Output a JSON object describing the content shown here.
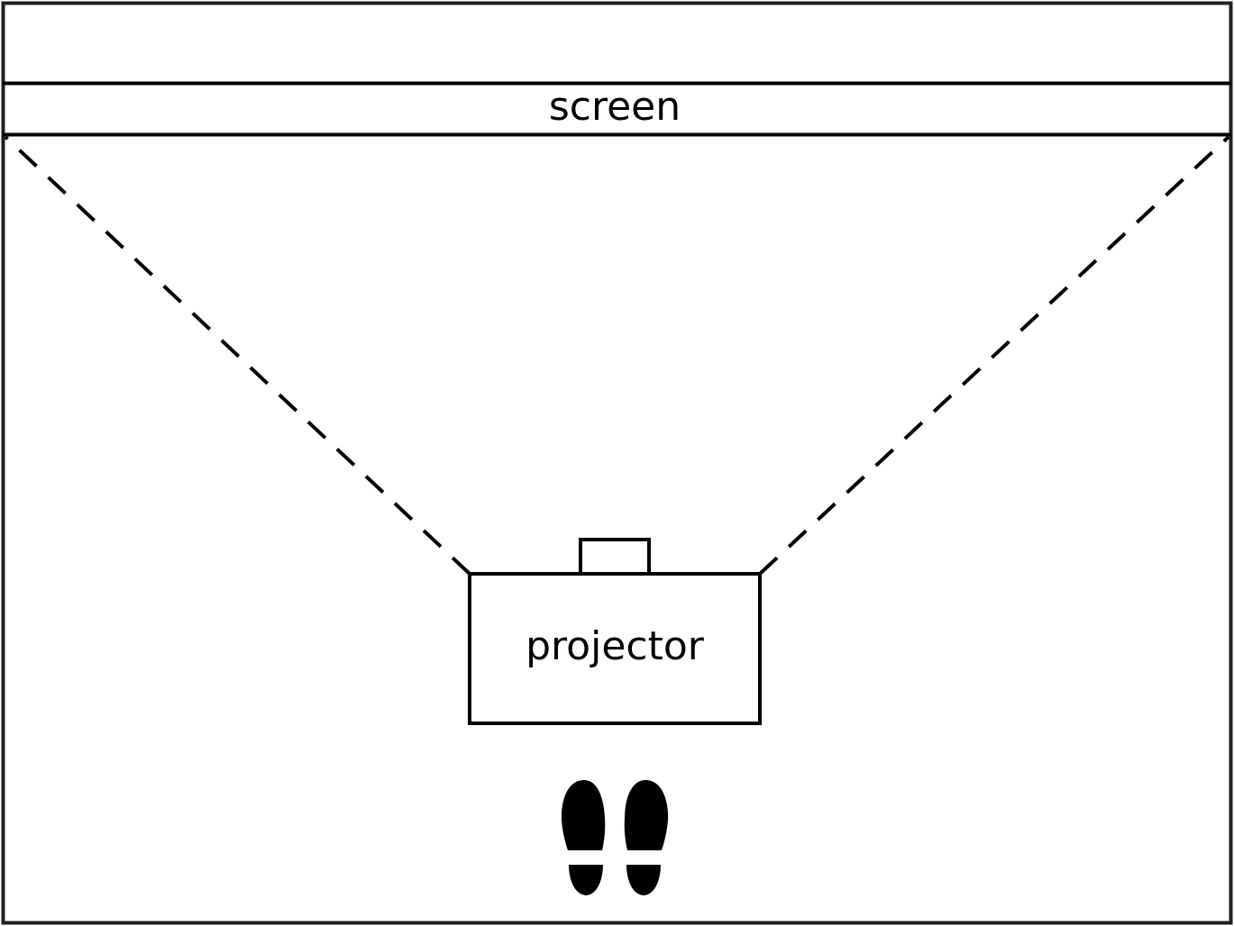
{
  "labels": {
    "screen": "screen",
    "projector": "projector"
  },
  "colors": {
    "stroke": "#000000",
    "frame": "#231f20",
    "background": "#ffffff"
  },
  "icons": {
    "footprints": "footprints-icon"
  }
}
